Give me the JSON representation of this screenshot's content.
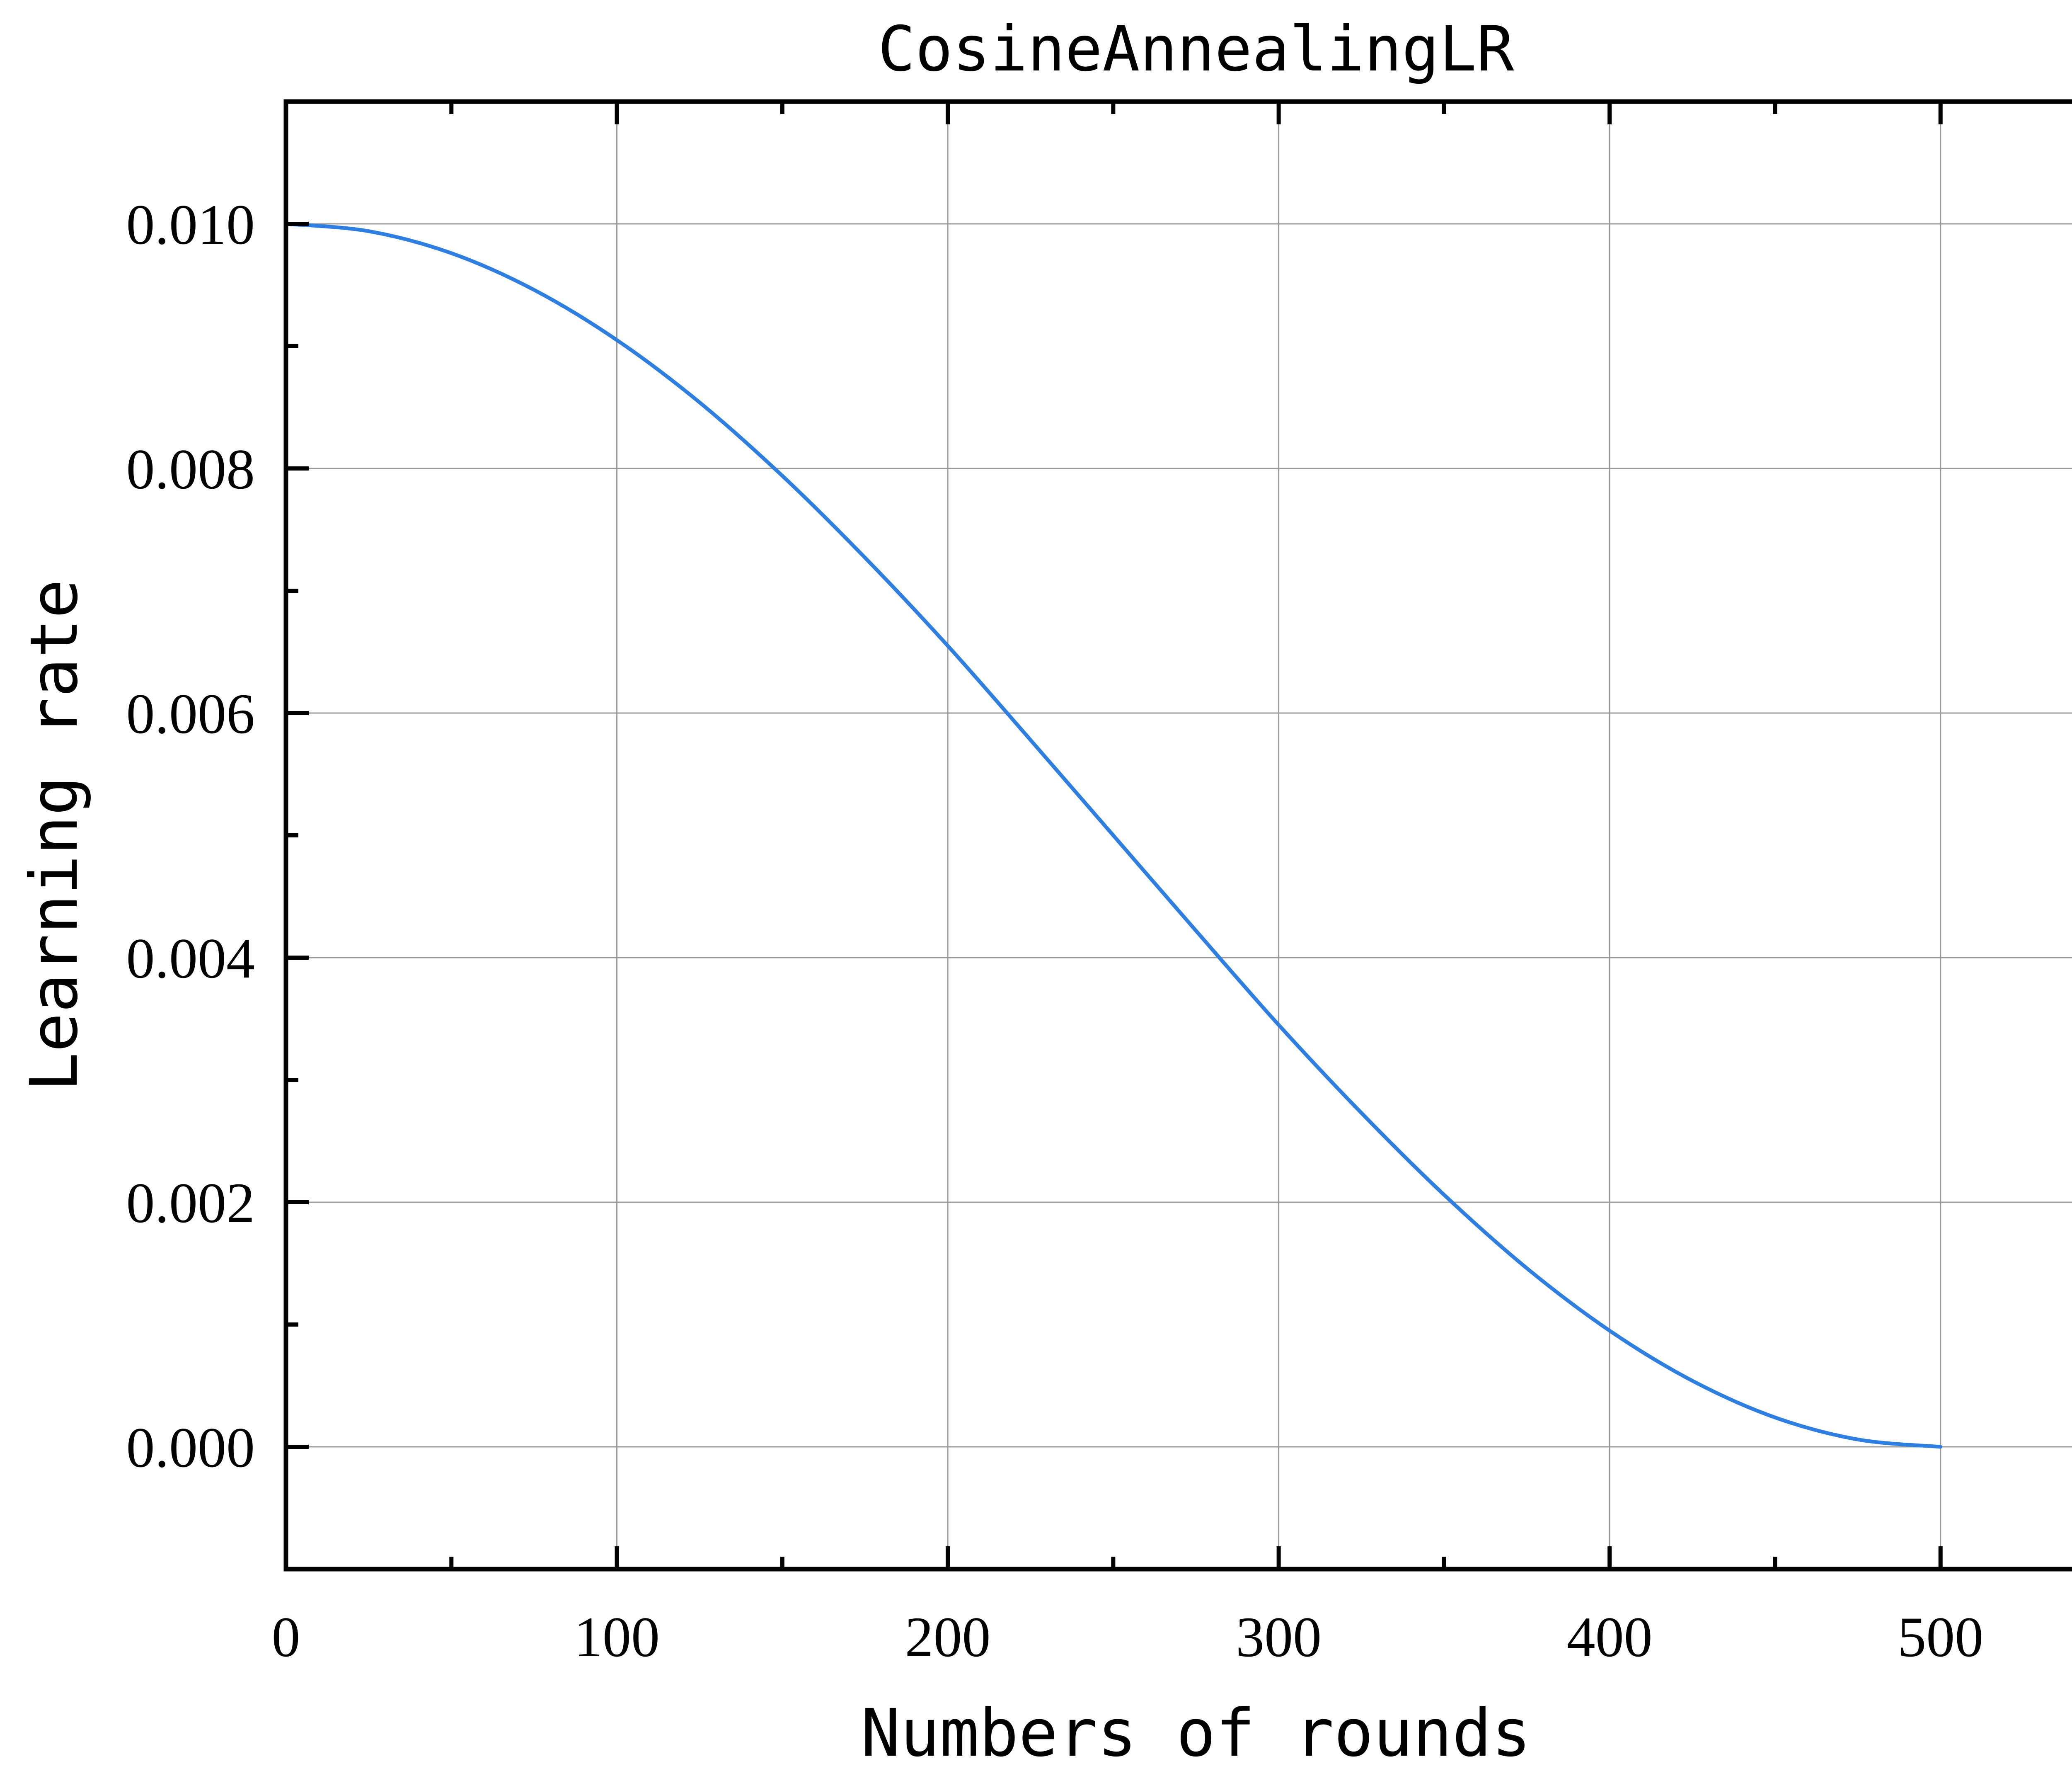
{
  "chart_data": {
    "type": "line",
    "title": "CosineAnnealingLR",
    "xlabel": "Numbers of rounds",
    "ylabel": "Learning rate",
    "xlim": [
      0,
      550
    ],
    "ylim": [
      -0.001,
      0.011
    ],
    "xticks": [
      0,
      100,
      200,
      300,
      400,
      500
    ],
    "xtick_labels": [
      "0",
      "100",
      "200",
      "300",
      "400",
      "500"
    ],
    "yticks": [
      0.0,
      0.002,
      0.004,
      0.006,
      0.008,
      0.01
    ],
    "ytick_labels": [
      "0.000",
      "0.002",
      "0.004",
      "0.006",
      "0.008",
      "0.010"
    ],
    "x_minor_step": 50,
    "y_minor_step": 0.001,
    "grid": true,
    "colors": {
      "line": "#2f7fe0",
      "grid": "#999999",
      "axis": "#000000"
    },
    "series": [
      {
        "x": [
          0,
          25,
          50,
          75,
          100,
          125,
          150,
          175,
          200,
          225,
          250,
          275,
          300,
          325,
          350,
          375,
          400,
          425,
          450,
          475,
          500
        ],
        "y": [
          0.01,
          0.00994,
          0.00976,
          0.00946,
          0.00905,
          0.00854,
          0.00794,
          0.00727,
          0.00655,
          0.00578,
          0.005,
          0.00422,
          0.00345,
          0.00273,
          0.00206,
          0.00146,
          0.00095,
          0.00054,
          0.00024,
          6e-05,
          0.0
        ]
      }
    ]
  }
}
